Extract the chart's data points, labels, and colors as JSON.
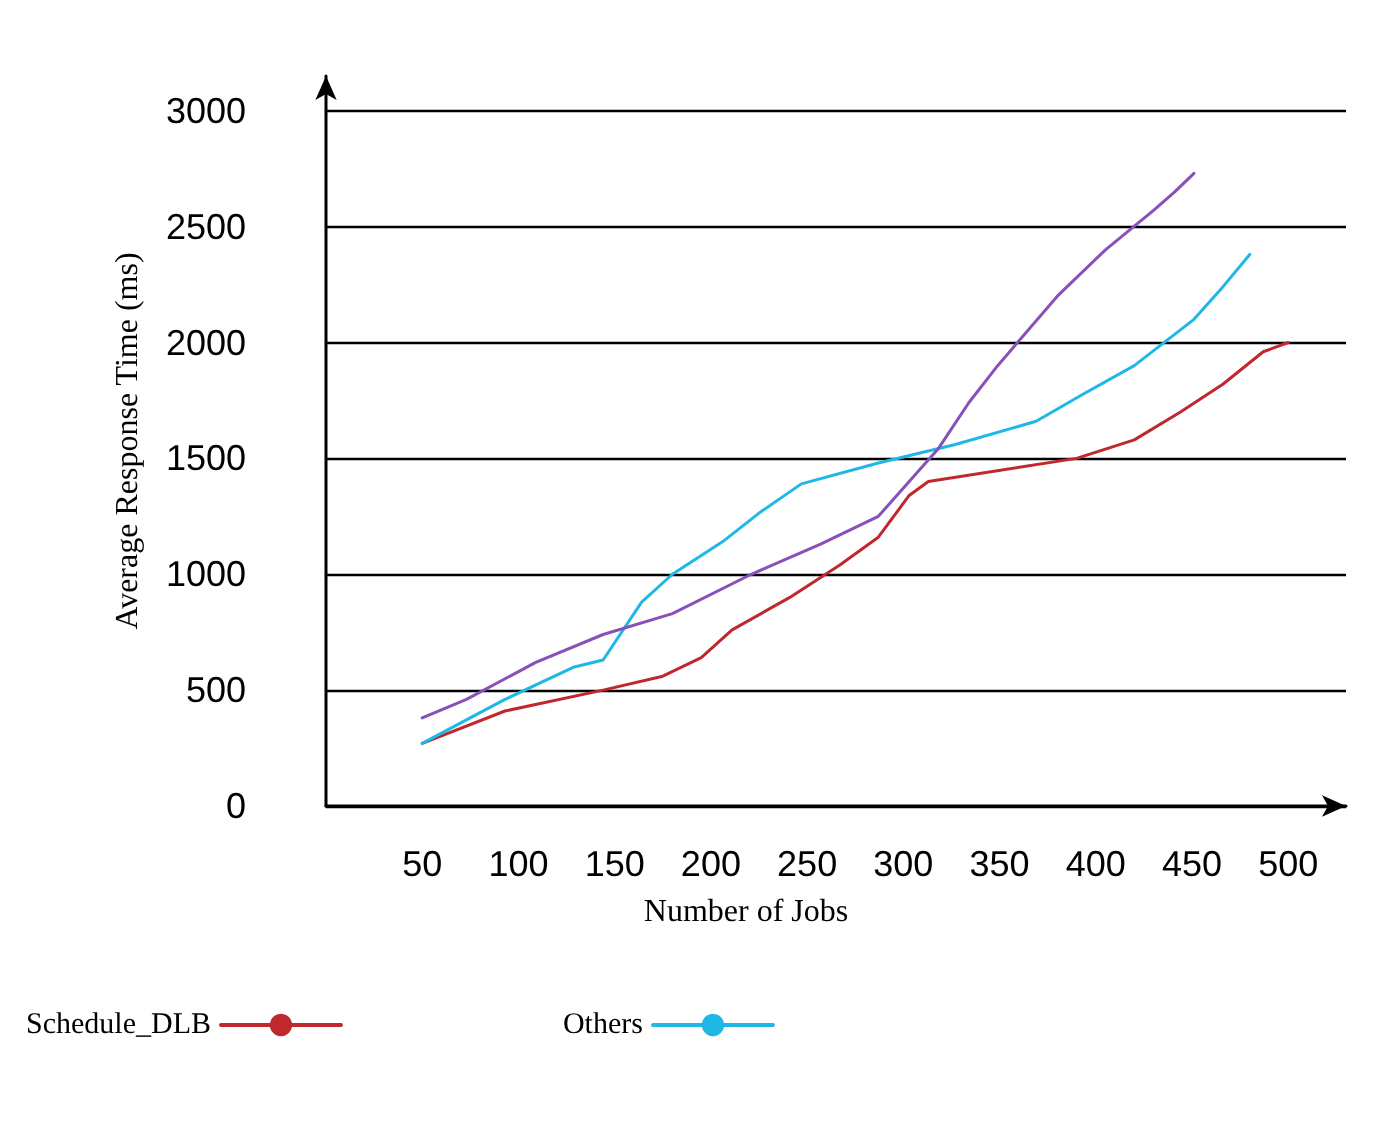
{
  "chart_data": {
    "type": "line",
    "xlabel": "Number of Jobs",
    "ylabel": "Average Response Time (ms)",
    "xlim": [
      0,
      530
    ],
    "xticks": [
      50,
      100,
      150,
      200,
      250,
      300,
      350,
      400,
      450,
      500
    ],
    "ylim": [
      0,
      3150
    ],
    "yticks": [
      0,
      500,
      1000,
      1500,
      2000,
      2500,
      3000
    ],
    "grid": "y",
    "legend": "bottom left",
    "marker": "none",
    "line_style": "solid",
    "series": [
      {
        "name": "Schedule_DLB",
        "color": "#c0282d",
        "x": [
          50,
          93,
          144,
          175,
          195,
          211,
          241,
          267,
          287,
          303,
          313,
          390,
          420,
          444,
          466,
          487,
          500
        ],
        "values": [
          270,
          410,
          500,
          560,
          640,
          760,
          900,
          1040,
          1160,
          1340,
          1400,
          1500,
          1580,
          1700,
          1820,
          1960,
          2000
        ]
      },
      {
        "name": "Others",
        "color": "#1fb8e6",
        "x": [
          50,
          93,
          129,
          144,
          164,
          180,
          206,
          226,
          247,
          287,
          327,
          369,
          394,
          420,
          451,
          466,
          480
        ],
        "values": [
          270,
          460,
          600,
          630,
          880,
          1000,
          1140,
          1270,
          1390,
          1480,
          1560,
          1660,
          1780,
          1900,
          2100,
          2240,
          2380
        ]
      },
      {
        "color": "#8a4fb8",
        "x": [
          50,
          73,
          109,
          144,
          180,
          221,
          257,
          287,
          318,
          334,
          349,
          380,
          405,
          430,
          441,
          451
        ],
        "values": [
          380,
          460,
          620,
          740,
          830,
          1000,
          1130,
          1250,
          1540,
          1740,
          1900,
          2200,
          2400,
          2570,
          2650,
          2730
        ]
      }
    ]
  }
}
